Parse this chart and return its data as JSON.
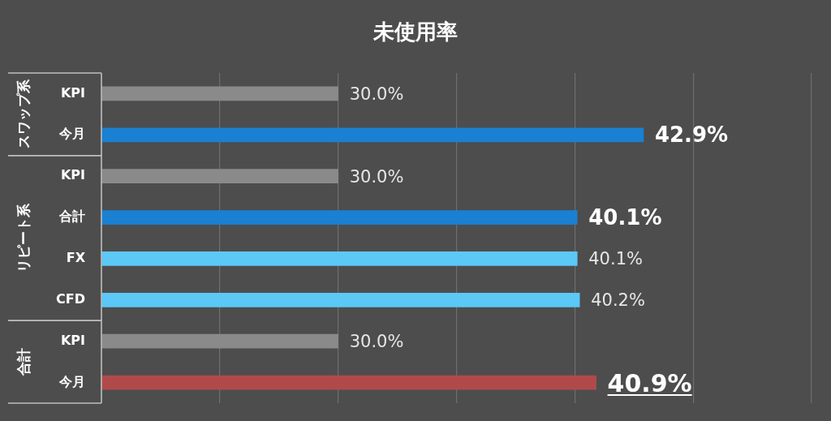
{
  "chart_data": {
    "type": "bar",
    "orientation": "horizontal",
    "title": "未使用率",
    "categories": [
      "KPI",
      "今月",
      "KPI",
      "合計",
      "FX",
      "CFD",
      "KPI",
      "今月"
    ],
    "values": [
      30.0,
      42.9,
      30.0,
      40.1,
      40.1,
      40.2,
      30.0,
      40.9
    ],
    "colors": [
      "#8a8a8a",
      "#1a80d2",
      "#8a8a8a",
      "#1a80d2",
      "#5cc8f6",
      "#5cc8f6",
      "#8a8a8a",
      "#b04a4a"
    ],
    "value_labels": [
      "30.0%",
      "42.9%",
      "30.0%",
      "40.1%",
      "40.1%",
      "40.2%",
      "30.0%",
      "40.9%"
    ],
    "xlim": [
      20,
      50
    ],
    "xticks": [
      {
        "value": 20,
        "label": null
      },
      {
        "value": 25,
        "label": null
      },
      {
        "value": 30,
        "label": null
      },
      {
        "value": 35,
        "label": null
      },
      {
        "value": 40,
        "label": null
      },
      {
        "value": 45,
        "label": null
      },
      {
        "value": 50,
        "label": null
      }
    ],
    "grid": "x",
    "tick_labels": "y",
    "legend": false,
    "annotations": [
      "スワップ系",
      "リピート系",
      "合計"
    ]
  }
}
